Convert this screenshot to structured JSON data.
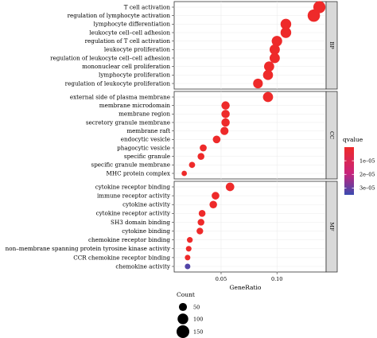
{
  "chart_data": {
    "type": "scatter",
    "title": "",
    "xlabel": "GeneRatio",
    "ylabel": "",
    "x_ticks": [
      0.05,
      0.1
    ],
    "x_tick_labels": [
      "0.05",
      "0.10"
    ],
    "xlim": [
      0.008,
      0.144
    ],
    "panels": [
      {
        "name": "BP",
        "terms": [
          {
            "term": "T cell activation",
            "gene_ratio": 0.138,
            "count": 135,
            "qvalue": 5e-09
          },
          {
            "term": "regulation of lymphocyte activation",
            "gene_ratio": 0.133,
            "count": 140,
            "qvalue": 5e-09
          },
          {
            "term": "lymphocyte differentiation",
            "gene_ratio": 0.108,
            "count": 100,
            "qvalue": 5e-09
          },
          {
            "term": "leukocyte cell–cell adhesion",
            "gene_ratio": 0.108,
            "count": 100,
            "qvalue": 5e-09
          },
          {
            "term": "regulation of T cell activation",
            "gene_ratio": 0.1,
            "count": 95,
            "qvalue": 5e-09
          },
          {
            "term": "leukocyte proliferation",
            "gene_ratio": 0.098,
            "count": 90,
            "qvalue": 5e-09
          },
          {
            "term": "regulation of leukocyte cell–cell adhesion",
            "gene_ratio": 0.098,
            "count": 90,
            "qvalue": 5e-09
          },
          {
            "term": "mononuclear cell proliferation",
            "gene_ratio": 0.093,
            "count": 88,
            "qvalue": 5e-09
          },
          {
            "term": "lymphocyte proliferation",
            "gene_ratio": 0.092,
            "count": 86,
            "qvalue": 5e-09
          },
          {
            "term": "regulation of leukocyte proliferation",
            "gene_ratio": 0.083,
            "count": 80,
            "qvalue": 5e-09
          }
        ]
      },
      {
        "name": "CC",
        "terms": [
          {
            "term": "external side of plasma membrane",
            "gene_ratio": 0.092,
            "count": 88,
            "qvalue": 5e-09
          },
          {
            "term": "membrane microdomain",
            "gene_ratio": 0.054,
            "count": 55,
            "qvalue": 5e-09
          },
          {
            "term": "membrane region",
            "gene_ratio": 0.054,
            "count": 55,
            "qvalue": 5e-09
          },
          {
            "term": "secretory granule membrane",
            "gene_ratio": 0.054,
            "count": 55,
            "qvalue": 5e-09
          },
          {
            "term": "membrane raft",
            "gene_ratio": 0.053,
            "count": 52,
            "qvalue": 5e-09
          },
          {
            "term": "endocytic vesicle",
            "gene_ratio": 0.046,
            "count": 45,
            "qvalue": 5e-09
          },
          {
            "term": "phagocytic vesicle",
            "gene_ratio": 0.034,
            "count": 35,
            "qvalue": 5e-09
          },
          {
            "term": "specific granule",
            "gene_ratio": 0.032,
            "count": 33,
            "qvalue": 5e-09
          },
          {
            "term": "specific granule membrane",
            "gene_ratio": 0.024,
            "count": 25,
            "qvalue": 5e-09
          },
          {
            "term": "MHC protein complex",
            "gene_ratio": 0.017,
            "count": 17,
            "qvalue": 5e-09
          }
        ]
      },
      {
        "name": "MF",
        "terms": [
          {
            "term": "cytokine receptor binding",
            "gene_ratio": 0.058,
            "count": 58,
            "qvalue": 5e-09
          },
          {
            "term": "immune receptor activity",
            "gene_ratio": 0.045,
            "count": 45,
            "qvalue": 5e-09
          },
          {
            "term": "cytokine activity",
            "gene_ratio": 0.043,
            "count": 43,
            "qvalue": 5e-09
          },
          {
            "term": "cytokine receptor activity",
            "gene_ratio": 0.033,
            "count": 33,
            "qvalue": 5e-09
          },
          {
            "term": "SH3 domain binding",
            "gene_ratio": 0.032,
            "count": 32,
            "qvalue": 5e-09
          },
          {
            "term": "cytokine binding",
            "gene_ratio": 0.031,
            "count": 31,
            "qvalue": 5e-09
          },
          {
            "term": "chemokine receptor binding",
            "gene_ratio": 0.022,
            "count": 22,
            "qvalue": 1.5e-08
          },
          {
            "term": "non–membrane spanning protein tyrosine kinase activity",
            "gene_ratio": 0.021,
            "count": 20,
            "qvalue": 1.5e-08
          },
          {
            "term": "CCR chemokine receptor binding",
            "gene_ratio": 0.02,
            "count": 19,
            "qvalue": 1.8e-08
          },
          {
            "term": "chemokine activity",
            "gene_ratio": 0.02,
            "count": 19,
            "qvalue": 3.2e-05
          }
        ]
      }
    ],
    "size_legend": {
      "title": "Count",
      "values": [
        50,
        100,
        150
      ],
      "labels": [
        "50",
        "100",
        "150"
      ]
    },
    "color_legend": {
      "title": "qvalue",
      "ticks": [
        1e-05,
        2e-05,
        3e-05
      ],
      "labels": [
        "1e–05",
        "2e–05",
        "3e–05"
      ],
      "range": [
        0,
        3.5e-05
      ],
      "colors": [
        "#ee2a2a",
        "#c8237c",
        "#3a4bb0"
      ]
    }
  }
}
